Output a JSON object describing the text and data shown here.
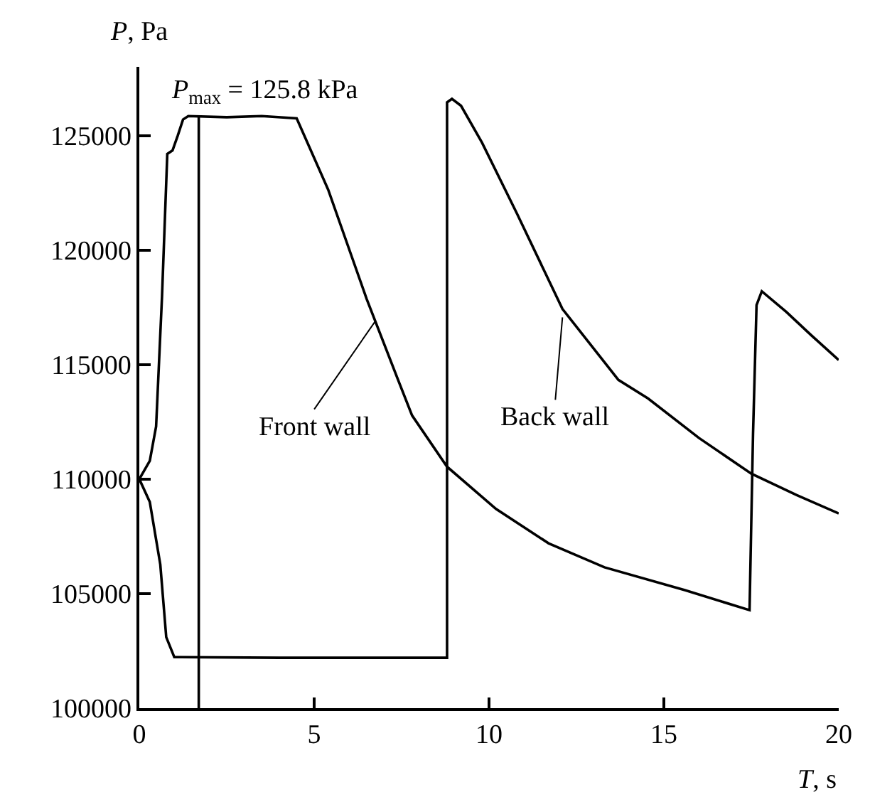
{
  "chart_data": {
    "type": "line",
    "xlabel": "T, s",
    "ylabel": "P, Pa",
    "xlim": [
      0,
      20
    ],
    "ylim": [
      100000,
      128000
    ],
    "xticks": [
      0,
      5,
      10,
      15,
      20
    ],
    "yticks": [
      100000,
      105000,
      110000,
      115000,
      120000,
      125000
    ],
    "marker": "none",
    "line_style": "solid",
    "series": [
      {
        "color": "#000000",
        "x": [
          0,
          0.3,
          0.48,
          0.65,
          0.8,
          0.95,
          1.1,
          1.25,
          1.4,
          2.5,
          3.5,
          4.5,
          5.4,
          6.5,
          7.4,
          7.8,
          8.8,
          10.2,
          11.7,
          13.3,
          15.6,
          17.45,
          17.55,
          17.65,
          17.8,
          18.5,
          19.2,
          20
        ],
        "values": [
          110000,
          110800,
          112300,
          118000,
          124200,
          124350,
          125000,
          125700,
          125850,
          125800,
          125850,
          125750,
          122640,
          117870,
          114330,
          112780,
          110540,
          108700,
          107200,
          106150,
          105150,
          104280,
          112000,
          117600,
          118200,
          117300,
          116300,
          115200
        ]
      },
      {
        "color": "#000000",
        "x": [
          0,
          0.3,
          0.6,
          0.77,
          1.0,
          4.0,
          8.8,
          8.8,
          8.94,
          9.2,
          9.8,
          10.8,
          12.1,
          13.7,
          14.55,
          16.0,
          17.5,
          18.8,
          20
        ],
        "values": [
          110000,
          109000,
          106270,
          103100,
          102230,
          102200,
          102200,
          126450,
          126600,
          126300,
          124690,
          121590,
          117430,
          114330,
          113520,
          111800,
          110240,
          109300,
          108500
        ]
      },
      {
        "color": "#000000",
        "x": [
          1.7,
          1.7
        ],
        "values": [
          100000,
          125800
        ]
      }
    ],
    "annotations": [
      {
        "text": "P$_{max}$ = 125.8 kPa",
        "x": 1.7,
        "y": 125800
      },
      {
        "text": "Front wall",
        "x": 6.75,
        "y": 116900
      },
      {
        "text": "Back wall",
        "x": 12.1,
        "y": 117060
      }
    ]
  }
}
